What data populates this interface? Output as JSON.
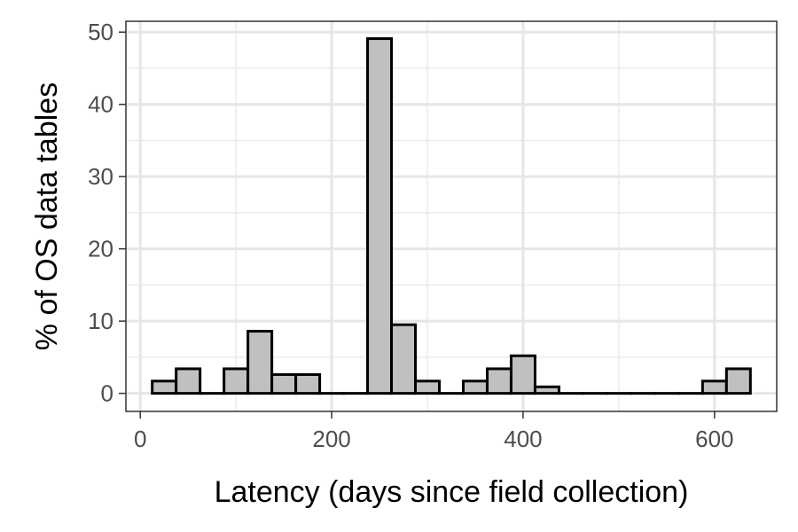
{
  "chart_data": {
    "type": "bar",
    "xlabel": "Latency (days since field collection)",
    "ylabel": "% of OS data tables",
    "xlim": [
      -15,
      665
    ],
    "ylim": [
      -2.5,
      51.5
    ],
    "x_ticks": [
      0,
      200,
      400,
      600
    ],
    "y_ticks": [
      0,
      10,
      20,
      30,
      40,
      50
    ],
    "grid": true,
    "bin_width": 25,
    "bin_centers": [
      25,
      50,
      75,
      100,
      125,
      150,
      175,
      200,
      225,
      250,
      275,
      300,
      325,
      350,
      375,
      400,
      425,
      450,
      475,
      500,
      525,
      550,
      575,
      600,
      625
    ],
    "values": [
      1.7,
      3.4,
      0,
      3.4,
      8.6,
      2.6,
      2.6,
      0,
      0,
      49.1,
      9.5,
      1.7,
      0,
      1.7,
      3.4,
      5.2,
      0.9,
      0,
      0,
      0,
      0,
      0,
      0,
      1.7,
      3.4
    ],
    "bar_fill": "#c0c0c0",
    "bar_outline": "#000000"
  }
}
